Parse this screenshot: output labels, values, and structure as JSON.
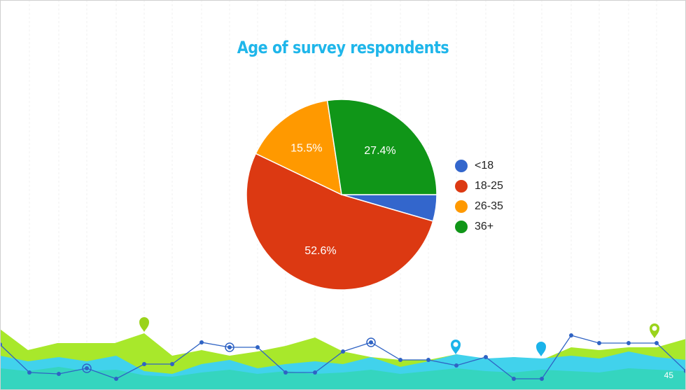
{
  "slide": {
    "title": "Age of survey respondents",
    "page_number": "45"
  },
  "colors": {
    "title": "#1fb6ea",
    "lime": "#a8e82b",
    "cyan": "#41d2ec",
    "teal": "#35d5bf",
    "line": "#2f63c4",
    "pin_blue": "#1ab3ea",
    "pin_lime": "#9ad31b"
  },
  "chart_data": {
    "type": "pie",
    "title": "Age of survey respondents",
    "slices": [
      {
        "label": "<18",
        "value": 4.5,
        "color": "#3366cc",
        "data_label": ""
      },
      {
        "label": "18-25",
        "value": 52.6,
        "color": "#dc3912",
        "data_label": "52.6%"
      },
      {
        "label": "26-35",
        "value": 15.5,
        "color": "#ff9900",
        "data_label": "15.5%"
      },
      {
        "label": "36+",
        "value": 27.4,
        "color": "#109618",
        "data_label": "27.4%"
      }
    ],
    "legend_position": "right"
  }
}
